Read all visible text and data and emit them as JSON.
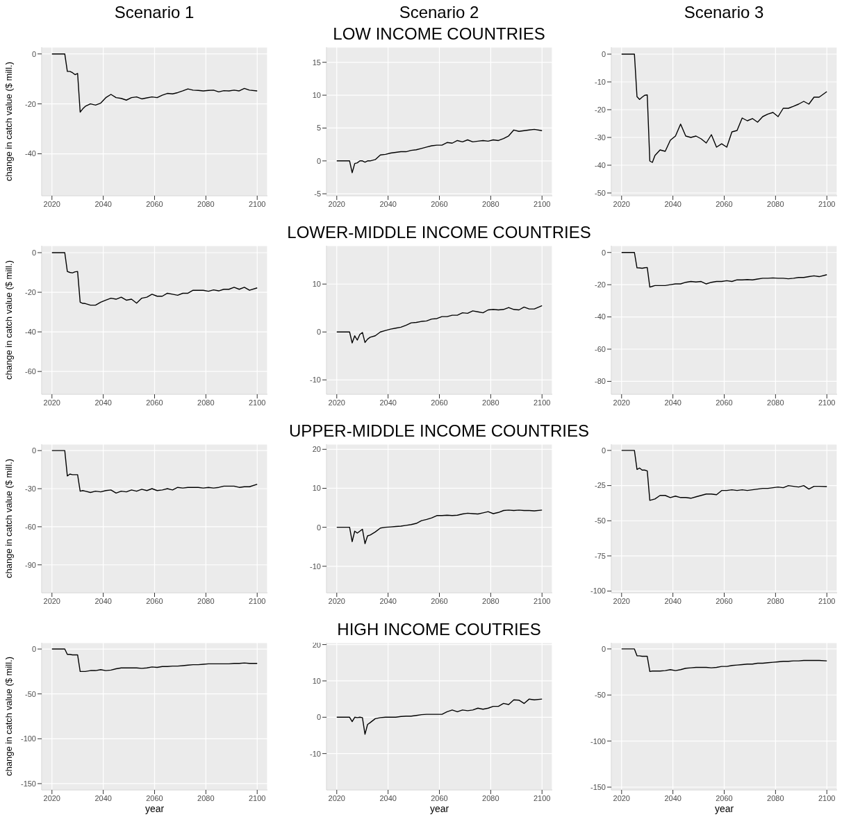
{
  "chart_data": [
    {
      "type": "line",
      "title": "Scenario 1",
      "ylabel": "change in catch value ($ mill.)",
      "color": "#000000",
      "x": [
        2020,
        2025,
        2026,
        2027,
        2028,
        2029,
        2030,
        2031,
        2032,
        2033,
        2035,
        2037,
        2039,
        2041,
        2043,
        2045,
        2047,
        2049,
        2051,
        2053,
        2055,
        2057,
        2059,
        2061,
        2063,
        2065,
        2067,
        2069,
        2071,
        2073,
        2075,
        2077,
        2079,
        2081,
        2083,
        2085,
        2087,
        2089,
        2091,
        2093,
        2095,
        2097,
        2100
      ],
      "values": [
        0,
        0,
        -7,
        -7,
        -7.5,
        -8.3,
        -7.8,
        -23.3,
        -22,
        -21,
        -20,
        -20.5,
        -19.7,
        -17.5,
        -16.2,
        -17.5,
        -17.8,
        -18.5,
        -17.5,
        -17.2,
        -18,
        -17.6,
        -17.2,
        -17.5,
        -16.5,
        -15.8,
        -16,
        -15.5,
        -14.8,
        -14,
        -14.5,
        -14.6,
        -14.8,
        -14.6,
        -14.5,
        -15.2,
        -14.7,
        -14.8,
        -14.5,
        -14.8,
        -13.8,
        -14.5,
        -14.8
      ],
      "xlim": [
        2016,
        2104
      ],
      "xticks": [
        2020,
        2040,
        2060,
        2080,
        2100
      ],
      "ylim": [
        -56.8,
        2.7
      ],
      "yticks": [
        -40,
        -20,
        0
      ],
      "grid": true
    },
    {
      "type": "line",
      "title": "Scenario 2",
      "subtitle": "LOW INCOME COUNTRIES",
      "color": "#000000",
      "x": [
        2020,
        2025,
        2026,
        2027,
        2028,
        2029,
        2030,
        2031,
        2032,
        2033,
        2035,
        2037,
        2039,
        2041,
        2043,
        2045,
        2047,
        2049,
        2051,
        2053,
        2055,
        2057,
        2059,
        2061,
        2063,
        2065,
        2067,
        2069,
        2071,
        2073,
        2075,
        2077,
        2079,
        2081,
        2083,
        2085,
        2087,
        2089,
        2091,
        2093,
        2095,
        2097,
        2100
      ],
      "values": [
        0,
        0,
        -1.8,
        -0.4,
        -0.3,
        0,
        0,
        -0.2,
        0,
        0,
        0.2,
        0.9,
        1.0,
        1.2,
        1.3,
        1.4,
        1.4,
        1.6,
        1.7,
        1.9,
        2.1,
        2.3,
        2.4,
        2.4,
        2.8,
        2.7,
        3.1,
        2.9,
        3.2,
        2.9,
        3.0,
        3.1,
        3.0,
        3.2,
        3.1,
        3.4,
        3.8,
        4.7,
        4.5,
        4.6,
        4.7,
        4.8,
        4.6
      ],
      "xlim": [
        2016,
        2104
      ],
      "xticks": [
        2020,
        2040,
        2060,
        2080,
        2100
      ],
      "ylim": [
        -5.3,
        17.3
      ],
      "yticks": [
        -5,
        0,
        5,
        10,
        15
      ],
      "grid": true
    },
    {
      "type": "line",
      "title": "Scenario 3",
      "color": "#000000",
      "x": [
        2020,
        2025,
        2026,
        2027,
        2028,
        2029,
        2030,
        2031,
        2032,
        2033,
        2035,
        2037,
        2039,
        2041,
        2043,
        2045,
        2047,
        2049,
        2051,
        2053,
        2055,
        2057,
        2059,
        2061,
        2063,
        2065,
        2067,
        2069,
        2071,
        2073,
        2075,
        2077,
        2079,
        2081,
        2083,
        2085,
        2087,
        2089,
        2091,
        2093,
        2095,
        2097,
        2100
      ],
      "values": [
        0,
        0,
        -15.3,
        -16.3,
        -15.5,
        -14.8,
        -14.7,
        -38.5,
        -39,
        -36.5,
        -34.5,
        -35,
        -31,
        -29.5,
        -25.2,
        -29.5,
        -30,
        -29.5,
        -30.5,
        -32,
        -29,
        -33.5,
        -32.3,
        -33.5,
        -28,
        -27.5,
        -23,
        -24,
        -23.2,
        -24.5,
        -22.5,
        -21.6,
        -21,
        -22.5,
        -19.5,
        -19.5,
        -18.8,
        -18,
        -17,
        -18,
        -15.5,
        -15.5,
        -13.5
      ],
      "xlim": [
        2016,
        2104
      ],
      "xticks": [
        2020,
        2040,
        2060,
        2080,
        2100
      ],
      "ylim": [
        -51,
        2.5
      ],
      "yticks": [
        -50,
        -40,
        -30,
        -20,
        -10,
        0
      ],
      "grid": true
    },
    {
      "type": "line",
      "ylabel": "change in catch value ($ mill.)",
      "color": "#000000",
      "x": [
        2020,
        2025,
        2026,
        2027,
        2028,
        2029,
        2030,
        2031,
        2032,
        2033,
        2035,
        2037,
        2039,
        2041,
        2043,
        2045,
        2047,
        2049,
        2051,
        2053,
        2055,
        2057,
        2059,
        2061,
        2063,
        2065,
        2067,
        2069,
        2071,
        2073,
        2075,
        2077,
        2079,
        2081,
        2083,
        2085,
        2087,
        2089,
        2091,
        2093,
        2095,
        2097,
        2100
      ],
      "values": [
        0,
        0,
        -9.5,
        -10,
        -10.2,
        -9.7,
        -9.5,
        -25,
        -25.6,
        -25.7,
        -26.5,
        -26.5,
        -25,
        -24,
        -23,
        -23.5,
        -22.5,
        -24,
        -23.5,
        -25.5,
        -23,
        -22.5,
        -21,
        -22,
        -22,
        -20.5,
        -21,
        -21.5,
        -20.5,
        -20.5,
        -19,
        -19,
        -19,
        -19.5,
        -18.8,
        -19.3,
        -18.5,
        -18.5,
        -17.5,
        -18.5,
        -17.5,
        -19,
        -17.8
      ],
      "xlim": [
        2016,
        2104
      ],
      "xticks": [
        2020,
        2040,
        2060,
        2080,
        2100
      ],
      "ylim": [
        -71.5,
        3.5
      ],
      "yticks": [
        -60,
        -40,
        -20,
        0
      ],
      "grid": true
    },
    {
      "type": "line",
      "title": "LOWER-MIDDLE INCOME COUNTRIES",
      "color": "#000000",
      "x": [
        2020,
        2025,
        2026,
        2027,
        2028,
        2029,
        2030,
        2031,
        2032,
        2033,
        2035,
        2037,
        2039,
        2041,
        2043,
        2045,
        2047,
        2049,
        2051,
        2053,
        2055,
        2057,
        2059,
        2061,
        2063,
        2065,
        2067,
        2069,
        2071,
        2073,
        2075,
        2077,
        2079,
        2081,
        2083,
        2085,
        2087,
        2089,
        2091,
        2093,
        2095,
        2097,
        2100
      ],
      "values": [
        0,
        0,
        -2.3,
        -0.8,
        -1.7,
        -0.5,
        -0.1,
        -2.2,
        -1.5,
        -1.1,
        -0.8,
        0,
        0.3,
        0.6,
        0.8,
        1.0,
        1.4,
        1.9,
        2.0,
        2.2,
        2.3,
        2.7,
        2.8,
        3.2,
        3.2,
        3.5,
        3.5,
        4.0,
        3.9,
        4.4,
        4.2,
        4.0,
        4.6,
        4.7,
        4.6,
        4.7,
        5.1,
        4.7,
        4.6,
        5.2,
        4.8,
        4.8,
        5.5
      ],
      "xlim": [
        2016,
        2104
      ],
      "xticks": [
        2020,
        2040,
        2060,
        2080,
        2100
      ],
      "ylim": [
        -13,
        18
      ],
      "yticks": [
        -10,
        0,
        10
      ],
      "grid": true
    },
    {
      "type": "line",
      "color": "#000000",
      "x": [
        2020,
        2025,
        2026,
        2027,
        2028,
        2029,
        2030,
        2031,
        2032,
        2033,
        2035,
        2037,
        2039,
        2041,
        2043,
        2045,
        2047,
        2049,
        2051,
        2053,
        2055,
        2057,
        2059,
        2061,
        2063,
        2065,
        2067,
        2069,
        2071,
        2073,
        2075,
        2077,
        2079,
        2081,
        2083,
        2085,
        2087,
        2089,
        2091,
        2093,
        2095,
        2097,
        2100
      ],
      "values": [
        0,
        0,
        -9.5,
        -9.6,
        -9.8,
        -9.5,
        -9.3,
        -21.5,
        -21,
        -20.5,
        -20.5,
        -20.5,
        -20,
        -19.5,
        -19.5,
        -18.5,
        -18,
        -18.3,
        -18,
        -19.5,
        -18.5,
        -18,
        -18,
        -17.5,
        -18,
        -17,
        -17,
        -16.8,
        -17,
        -16.5,
        -16,
        -16,
        -15.8,
        -16,
        -16,
        -16.3,
        -16,
        -15.5,
        -15.5,
        -15,
        -14.5,
        -15,
        -13.8
      ],
      "xlim": [
        2016,
        2104
      ],
      "xticks": [
        2020,
        2040,
        2060,
        2080,
        2100
      ],
      "ylim": [
        -88,
        4.2
      ],
      "yticks": [
        -80,
        -60,
        -40,
        -20,
        0
      ],
      "grid": true
    },
    {
      "type": "line",
      "ylabel": "change in catch value ($ mill.)",
      "color": "#000000",
      "x": [
        2020,
        2025,
        2026,
        2027,
        2028,
        2029,
        2030,
        2031,
        2032,
        2033,
        2035,
        2037,
        2039,
        2041,
        2043,
        2045,
        2047,
        2049,
        2051,
        2053,
        2055,
        2057,
        2059,
        2061,
        2063,
        2065,
        2067,
        2069,
        2071,
        2073,
        2075,
        2077,
        2079,
        2081,
        2083,
        2085,
        2087,
        2089,
        2091,
        2093,
        2095,
        2097,
        2100
      ],
      "values": [
        0,
        0,
        -20,
        -18.5,
        -19,
        -19,
        -19,
        -32,
        -31.5,
        -32,
        -33,
        -32,
        -32.5,
        -31.5,
        -31,
        -33.5,
        -32,
        -32.5,
        -31,
        -32,
        -30.5,
        -31.5,
        -30,
        -31.5,
        -31,
        -30,
        -31,
        -29,
        -29.5,
        -29,
        -29,
        -29,
        -29.5,
        -29,
        -29.5,
        -29,
        -28,
        -28,
        -28,
        -29,
        -28.5,
        -28.5,
        -26.5
      ],
      "xlim": [
        2016,
        2104
      ],
      "xticks": [
        2020,
        2040,
        2060,
        2080,
        2100
      ],
      "ylim": [
        -112,
        5
      ],
      "yticks": [
        -90,
        -60,
        -30,
        0
      ],
      "grid": true
    },
    {
      "type": "line",
      "title": "UPPER-MIDDLE INCOME COUNTRIES",
      "color": "#000000",
      "x": [
        2020,
        2025,
        2026,
        2027,
        2028,
        2029,
        2030,
        2031,
        2032,
        2033,
        2035,
        2037,
        2039,
        2041,
        2043,
        2045,
        2047,
        2049,
        2051,
        2053,
        2055,
        2057,
        2059,
        2061,
        2063,
        2065,
        2067,
        2069,
        2071,
        2073,
        2075,
        2077,
        2079,
        2081,
        2083,
        2085,
        2087,
        2089,
        2091,
        2093,
        2095,
        2097,
        2100
      ],
      "values": [
        0,
        0,
        -3.7,
        -1.0,
        -1.5,
        -1.0,
        -0.5,
        -4.2,
        -2.2,
        -2.0,
        -1.2,
        -0.2,
        0,
        0.1,
        0.2,
        0.3,
        0.5,
        0.7,
        1.0,
        1.7,
        2.0,
        2.4,
        3.0,
        3.0,
        3.1,
        3.0,
        3.1,
        3.4,
        3.6,
        3.5,
        3.4,
        3.7,
        4.0,
        3.5,
        3.8,
        4.3,
        4.4,
        4.3,
        4.4,
        4.3,
        4.3,
        4.2,
        4.4
      ],
      "xlim": [
        2016,
        2104
      ],
      "xticks": [
        2020,
        2040,
        2060,
        2080,
        2100
      ],
      "ylim": [
        -16.8,
        21.3
      ],
      "yticks": [
        -10,
        0,
        10,
        20
      ],
      "grid": true
    },
    {
      "type": "line",
      "color": "#000000",
      "x": [
        2020,
        2025,
        2026,
        2027,
        2028,
        2029,
        2030,
        2031,
        2032,
        2033,
        2035,
        2037,
        2039,
        2041,
        2043,
        2045,
        2047,
        2049,
        2051,
        2053,
        2055,
        2057,
        2059,
        2061,
        2063,
        2065,
        2067,
        2069,
        2071,
        2073,
        2075,
        2077,
        2079,
        2081,
        2083,
        2085,
        2087,
        2089,
        2091,
        2093,
        2095,
        2097,
        2100
      ],
      "values": [
        0,
        0,
        -13.5,
        -12.5,
        -14,
        -14,
        -14.5,
        -35.5,
        -35,
        -34.5,
        -32,
        -32,
        -33.5,
        -32.5,
        -33.5,
        -33.5,
        -34,
        -33,
        -32,
        -31,
        -31,
        -31.5,
        -28.5,
        -28.5,
        -28,
        -28.5,
        -28,
        -28.5,
        -28,
        -27.5,
        -27,
        -27,
        -26.5,
        -26,
        -26.5,
        -25,
        -25.5,
        -26,
        -25,
        -27.5,
        -25.5,
        -25.5,
        -25.7
      ],
      "xlim": [
        2016,
        2104
      ],
      "xticks": [
        2020,
        2040,
        2060,
        2080,
        2100
      ],
      "ylim": [
        -101.2,
        4.4
      ],
      "yticks": [
        -100,
        -75,
        -50,
        -25,
        0
      ],
      "grid": true
    },
    {
      "type": "line",
      "ylabel": "change in catch value ($ mill.)",
      "xlabel": "year",
      "color": "#000000",
      "x": [
        2020,
        2025,
        2026,
        2027,
        2028,
        2029,
        2030,
        2031,
        2032,
        2033,
        2035,
        2037,
        2039,
        2041,
        2043,
        2045,
        2047,
        2049,
        2051,
        2053,
        2055,
        2057,
        2059,
        2061,
        2063,
        2065,
        2067,
        2069,
        2071,
        2073,
        2075,
        2077,
        2079,
        2081,
        2083,
        2085,
        2087,
        2089,
        2091,
        2093,
        2095,
        2097,
        2100
      ],
      "values": [
        0,
        0,
        -6,
        -6,
        -6.5,
        -6.5,
        -6.5,
        -25,
        -25,
        -25,
        -24,
        -24,
        -23,
        -24,
        -23.5,
        -22,
        -21,
        -21,
        -21,
        -21,
        -21.5,
        -21,
        -20,
        -20.5,
        -19.5,
        -19.5,
        -19,
        -19,
        -18.5,
        -18,
        -17.5,
        -17.5,
        -17,
        -16.5,
        -16.5,
        -16.5,
        -16.5,
        -16.5,
        -16,
        -16,
        -15.5,
        -16,
        -16
      ],
      "xlim": [
        2016,
        2104
      ],
      "xticks": [
        2020,
        2040,
        2060,
        2080,
        2100
      ],
      "ylim": [
        -157,
        7
      ],
      "yticks": [
        -150,
        -100,
        -50,
        0
      ],
      "grid": true
    },
    {
      "type": "line",
      "title": "HIGH INCOME COUTRIES",
      "xlabel": "year",
      "color": "#000000",
      "x": [
        2020,
        2025,
        2026,
        2027,
        2028,
        2029,
        2030,
        2031,
        2032,
        2033,
        2035,
        2037,
        2039,
        2041,
        2043,
        2045,
        2047,
        2049,
        2051,
        2053,
        2055,
        2057,
        2059,
        2061,
        2063,
        2065,
        2067,
        2069,
        2071,
        2073,
        2075,
        2077,
        2079,
        2081,
        2083,
        2085,
        2087,
        2089,
        2091,
        2093,
        2095,
        2097,
        2100
      ],
      "values": [
        0,
        0,
        -1.2,
        0,
        -0.1,
        0,
        -0.1,
        -4.7,
        -2.0,
        -1.5,
        -0.4,
        -0.1,
        0,
        0,
        0,
        0.2,
        0.3,
        0.3,
        0.5,
        0.7,
        0.8,
        0.8,
        0.8,
        0.8,
        1.5,
        2.0,
        1.5,
        2.0,
        1.8,
        2.0,
        2.5,
        2.2,
        2.5,
        3.0,
        3.0,
        3.8,
        3.5,
        4.8,
        4.7,
        3.8,
        5.0,
        4.8,
        5.0
      ],
      "xlim": [
        2016,
        2104
      ],
      "xticks": [
        2020,
        2040,
        2060,
        2080,
        2100
      ],
      "ylim": [
        -20,
        20.5
      ],
      "yticks": [
        -10,
        0,
        10,
        20
      ],
      "grid": true
    },
    {
      "type": "line",
      "xlabel": "year",
      "color": "#000000",
      "x": [
        2020,
        2025,
        2026,
        2027,
        2028,
        2029,
        2030,
        2031,
        2032,
        2033,
        2035,
        2037,
        2039,
        2041,
        2043,
        2045,
        2047,
        2049,
        2051,
        2053,
        2055,
        2057,
        2059,
        2061,
        2063,
        2065,
        2067,
        2069,
        2071,
        2073,
        2075,
        2077,
        2079,
        2081,
        2083,
        2085,
        2087,
        2089,
        2091,
        2093,
        2095,
        2097,
        2100
      ],
      "values": [
        0,
        0,
        -7.5,
        -7.5,
        -8,
        -8,
        -8,
        -24.5,
        -24,
        -24,
        -24,
        -23.5,
        -22.5,
        -23.5,
        -22.5,
        -21,
        -20.5,
        -20,
        -20,
        -20,
        -20.5,
        -20,
        -19,
        -19,
        -18,
        -17.5,
        -17,
        -16.5,
        -16.5,
        -15.5,
        -15.5,
        -15,
        -14.5,
        -14,
        -13.5,
        -13.5,
        -13,
        -13,
        -12.5,
        -12.5,
        -12.5,
        -12.5,
        -13
      ],
      "xlim": [
        2016,
        2104
      ],
      "xticks": [
        2020,
        2040,
        2060,
        2080,
        2100
      ],
      "ylim": [
        -153,
        6.7
      ],
      "yticks": [
        -150,
        -100,
        -50,
        0
      ],
      "grid": true
    }
  ]
}
